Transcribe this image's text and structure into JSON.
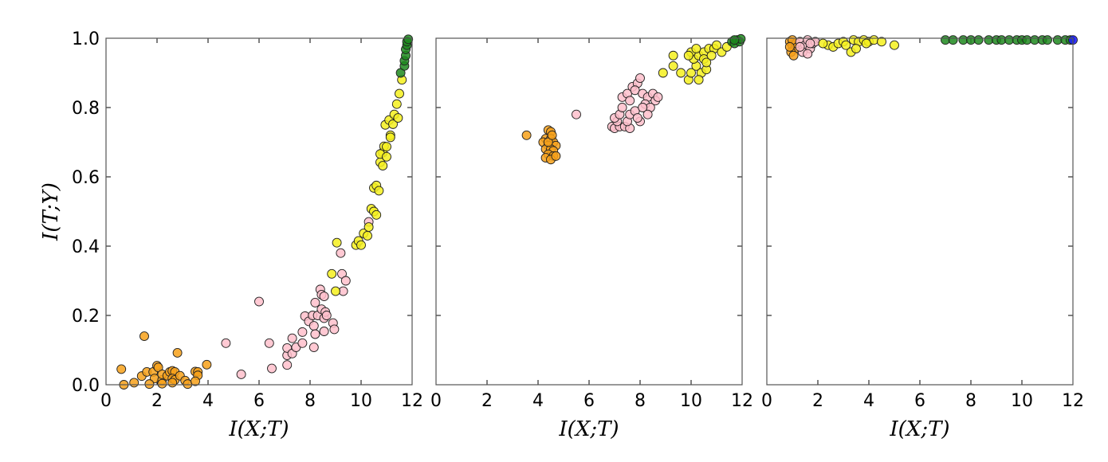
{
  "chart_data": [
    {
      "type": "scatter",
      "xlabel": "I(X;T)",
      "ylabel": "I(T;Y)",
      "xlim": [
        0,
        12
      ],
      "ylim": [
        0,
        1
      ],
      "xticks": [
        "0",
        "2",
        "4",
        "6",
        "8",
        "10",
        "12"
      ],
      "yticks": [
        "0.0",
        "0.2",
        "0.4",
        "0.6",
        "0.8",
        "1.0"
      ],
      "grid": false,
      "series": [
        {
          "color": "#f7a11a",
          "points": [
            [
              0.6,
              0.045
            ],
            [
              0.7,
              0.0
            ],
            [
              1.1,
              0.006
            ],
            [
              1.5,
              0.14
            ],
            [
              1.4,
              0.025
            ],
            [
              1.6,
              0.037
            ],
            [
              1.85,
              0.037
            ],
            [
              2.0,
              0.055
            ],
            [
              2.05,
              0.05
            ],
            [
              1.9,
              0.018
            ],
            [
              2.2,
              0.014
            ],
            [
              2.2,
              0.03
            ],
            [
              2.4,
              0.026
            ],
            [
              2.5,
              0.037
            ],
            [
              2.6,
              0.04
            ],
            [
              2.7,
              0.037
            ],
            [
              2.6,
              0.018
            ],
            [
              2.7,
              0.014
            ],
            [
              2.9,
              0.026
            ],
            [
              2.8,
              0.092
            ],
            [
              3.1,
              0.012
            ],
            [
              2.6,
              0.006
            ],
            [
              1.7,
              0.002
            ],
            [
              3.2,
              0.002
            ],
            [
              3.5,
              0.038
            ],
            [
              3.6,
              0.037
            ],
            [
              3.6,
              0.027
            ],
            [
              3.5,
              0.01
            ],
            [
              3.95,
              0.058
            ],
            [
              2.2,
              0.003
            ]
          ]
        },
        {
          "color": "#ffc0cb",
          "points": [
            [
              4.7,
              0.12
            ],
            [
              5.3,
              0.03
            ],
            [
              6.0,
              0.24
            ],
            [
              6.4,
              0.12
            ],
            [
              6.5,
              0.047
            ],
            [
              7.1,
              0.057
            ],
            [
              7.1,
              0.085
            ],
            [
              7.1,
              0.106
            ],
            [
              7.3,
              0.09
            ],
            [
              7.3,
              0.134
            ],
            [
              7.45,
              0.108
            ],
            [
              7.7,
              0.12
            ],
            [
              7.7,
              0.152
            ],
            [
              7.8,
              0.198
            ],
            [
              7.95,
              0.183
            ],
            [
              8.1,
              0.2
            ],
            [
              8.15,
              0.17
            ],
            [
              8.2,
              0.146
            ],
            [
              8.15,
              0.108
            ],
            [
              8.2,
              0.237
            ],
            [
              8.3,
              0.2
            ],
            [
              8.4,
              0.275
            ],
            [
              8.45,
              0.26
            ],
            [
              8.55,
              0.255
            ],
            [
              8.45,
              0.218
            ],
            [
              8.55,
              0.192
            ],
            [
              8.6,
              0.21
            ],
            [
              8.65,
              0.2
            ],
            [
              8.55,
              0.154
            ],
            [
              8.9,
              0.178
            ],
            [
              8.95,
              0.16
            ],
            [
              9.3,
              0.27
            ],
            [
              9.25,
              0.32
            ],
            [
              9.4,
              0.3
            ],
            [
              9.2,
              0.38
            ],
            [
              10.3,
              0.47
            ]
          ]
        },
        {
          "color": "#f5f01e",
          "points": [
            [
              8.85,
              0.32
            ],
            [
              9.0,
              0.27
            ],
            [
              9.05,
              0.41
            ],
            [
              9.8,
              0.403
            ],
            [
              9.9,
              0.415
            ],
            [
              10.0,
              0.403
            ],
            [
              10.1,
              0.437
            ],
            [
              10.25,
              0.43
            ],
            [
              10.3,
              0.455
            ],
            [
              10.4,
              0.508
            ],
            [
              10.5,
              0.5
            ],
            [
              10.6,
              0.49
            ],
            [
              10.5,
              0.568
            ],
            [
              10.6,
              0.575
            ],
            [
              10.7,
              0.56
            ],
            [
              10.75,
              0.642
            ],
            [
              10.85,
              0.632
            ],
            [
              10.85,
              0.67
            ],
            [
              10.75,
              0.666
            ],
            [
              11.0,
              0.658
            ],
            [
              10.9,
              0.688
            ],
            [
              11.0,
              0.687
            ],
            [
              10.95,
              0.75
            ],
            [
              11.1,
              0.764
            ],
            [
              11.15,
              0.72
            ],
            [
              11.15,
              0.714
            ],
            [
              11.25,
              0.752
            ],
            [
              11.3,
              0.78
            ],
            [
              11.45,
              0.77
            ],
            [
              11.4,
              0.81
            ],
            [
              11.5,
              0.84
            ],
            [
              11.6,
              0.88
            ]
          ]
        },
        {
          "color": "#1f8a1f",
          "points": [
            [
              11.55,
              0.9
            ],
            [
              11.7,
              0.92
            ],
            [
              11.7,
              0.935
            ],
            [
              11.75,
              0.95
            ],
            [
              11.75,
              0.968
            ],
            [
              11.8,
              0.98
            ],
            [
              11.8,
              0.99
            ],
            [
              11.85,
              0.997
            ]
          ]
        }
      ]
    },
    {
      "type": "scatter",
      "xlabel": "I(X;T)",
      "xlim": [
        0,
        12
      ],
      "ylim": [
        0,
        1
      ],
      "xticks": [
        "0",
        "2",
        "4",
        "6",
        "8",
        "10",
        "12"
      ],
      "grid": false,
      "series": [
        {
          "color": "#f7a11a",
          "points": [
            [
              3.55,
              0.72
            ],
            [
              4.4,
              0.735
            ],
            [
              4.5,
              0.73
            ],
            [
              4.3,
              0.71
            ],
            [
              4.5,
              0.71
            ],
            [
              4.6,
              0.7
            ],
            [
              4.2,
              0.7
            ],
            [
              4.4,
              0.69
            ],
            [
              4.7,
              0.69
            ],
            [
              4.3,
              0.68
            ],
            [
              4.5,
              0.68
            ],
            [
              4.6,
              0.675
            ],
            [
              4.4,
              0.665
            ],
            [
              4.6,
              0.66
            ],
            [
              4.3,
              0.655
            ],
            [
              4.5,
              0.65
            ],
            [
              4.7,
              0.66
            ],
            [
              4.4,
              0.7
            ],
            [
              4.55,
              0.72
            ]
          ]
        },
        {
          "color": "#ffc0cb",
          "points": [
            [
              5.5,
              0.78
            ],
            [
              6.9,
              0.745
            ],
            [
              7.0,
              0.74
            ],
            [
              7.2,
              0.745
            ],
            [
              7.4,
              0.745
            ],
            [
              7.6,
              0.74
            ],
            [
              7.1,
              0.76
            ],
            [
              7.5,
              0.76
            ],
            [
              7.0,
              0.77
            ],
            [
              7.2,
              0.78
            ],
            [
              7.3,
              0.8
            ],
            [
              7.6,
              0.78
            ],
            [
              7.8,
              0.79
            ],
            [
              8.0,
              0.76
            ],
            [
              7.9,
              0.77
            ],
            [
              7.3,
              0.83
            ],
            [
              7.5,
              0.84
            ],
            [
              7.7,
              0.86
            ],
            [
              7.9,
              0.87
            ],
            [
              7.8,
              0.85
            ],
            [
              8.0,
              0.885
            ],
            [
              8.1,
              0.84
            ],
            [
              8.3,
              0.83
            ],
            [
              8.5,
              0.84
            ],
            [
              8.6,
              0.82
            ],
            [
              8.2,
              0.81
            ],
            [
              8.4,
              0.8
            ],
            [
              8.7,
              0.83
            ],
            [
              8.1,
              0.8
            ],
            [
              8.3,
              0.78
            ],
            [
              7.6,
              0.82
            ]
          ]
        },
        {
          "color": "#f5f01e",
          "points": [
            [
              8.9,
              0.9
            ],
            [
              9.3,
              0.95
            ],
            [
              9.3,
              0.92
            ],
            [
              9.6,
              0.9
            ],
            [
              9.9,
              0.88
            ],
            [
              10.0,
              0.9
            ],
            [
              10.2,
              0.92
            ],
            [
              10.4,
              0.9
            ],
            [
              10.6,
              0.91
            ],
            [
              10.1,
              0.94
            ],
            [
              10.3,
              0.95
            ],
            [
              10.5,
              0.96
            ],
            [
              10.7,
              0.97
            ],
            [
              10.9,
              0.97
            ],
            [
              11.2,
              0.96
            ],
            [
              10.0,
              0.96
            ],
            [
              10.2,
              0.97
            ],
            [
              10.5,
              0.94
            ],
            [
              10.8,
              0.95
            ],
            [
              11.0,
              0.98
            ],
            [
              11.4,
              0.975
            ],
            [
              10.6,
              0.93
            ],
            [
              9.9,
              0.95
            ],
            [
              10.3,
              0.88
            ]
          ]
        },
        {
          "color": "#1f8a1f",
          "points": [
            [
              11.6,
              0.99
            ],
            [
              11.7,
              0.985
            ],
            [
              11.8,
              0.995
            ],
            [
              11.9,
              0.99
            ],
            [
              11.95,
              0.998
            ],
            [
              11.7,
              0.995
            ]
          ]
        }
      ]
    },
    {
      "type": "scatter",
      "xlabel": "I(X;T)",
      "xlim": [
        0,
        12
      ],
      "ylim": [
        0,
        1
      ],
      "xticks": [
        "0",
        "2",
        "4",
        "6",
        "8",
        "10",
        "12"
      ],
      "grid": false,
      "series": [
        {
          "color": "#f7a11a",
          "points": [
            [
              0.9,
              0.99
            ],
            [
              1.0,
              0.98
            ],
            [
              1.1,
              0.97
            ],
            [
              0.95,
              0.96
            ],
            [
              1.05,
              0.95
            ],
            [
              1.15,
              0.985
            ],
            [
              1.0,
              0.995
            ],
            [
              0.9,
              0.975
            ]
          ]
        },
        {
          "color": "#ffc0cb",
          "points": [
            [
              1.3,
              0.99
            ],
            [
              1.5,
              0.98
            ],
            [
              1.7,
              0.97
            ],
            [
              1.6,
              0.995
            ],
            [
              1.8,
              0.985
            ],
            [
              1.4,
              0.96
            ],
            [
              1.6,
              0.955
            ],
            [
              1.9,
              0.99
            ],
            [
              1.3,
              0.975
            ],
            [
              1.7,
              0.985
            ]
          ]
        },
        {
          "color": "#f5f01e",
          "points": [
            [
              2.4,
              0.98
            ],
            [
              2.6,
              0.975
            ],
            [
              2.8,
              0.985
            ],
            [
              3.0,
              0.99
            ],
            [
              3.1,
              0.98
            ],
            [
              3.3,
              0.96
            ],
            [
              3.4,
              0.995
            ],
            [
              3.6,
              0.99
            ],
            [
              3.8,
              0.995
            ],
            [
              4.0,
              0.99
            ],
            [
              4.2,
              0.995
            ],
            [
              4.5,
              0.99
            ],
            [
              5.0,
              0.98
            ],
            [
              3.5,
              0.97
            ],
            [
              2.2,
              0.985
            ],
            [
              3.9,
              0.985
            ]
          ]
        },
        {
          "color": "#1f8a1f",
          "points": [
            [
              7.0,
              0.995
            ],
            [
              7.3,
              0.995
            ],
            [
              7.7,
              0.995
            ],
            [
              8.0,
              0.995
            ],
            [
              8.3,
              0.995
            ],
            [
              8.7,
              0.995
            ],
            [
              9.0,
              0.995
            ],
            [
              9.2,
              0.995
            ],
            [
              9.5,
              0.995
            ],
            [
              9.8,
              0.995
            ],
            [
              10.0,
              0.995
            ],
            [
              10.2,
              0.995
            ],
            [
              10.5,
              0.995
            ],
            [
              10.8,
              0.995
            ],
            [
              11.0,
              0.995
            ],
            [
              11.4,
              0.995
            ],
            [
              11.7,
              0.995
            ],
            [
              11.9,
              0.995
            ]
          ]
        },
        {
          "color": "#1a1aff",
          "points": [
            [
              12.0,
              0.995
            ]
          ]
        }
      ]
    }
  ]
}
